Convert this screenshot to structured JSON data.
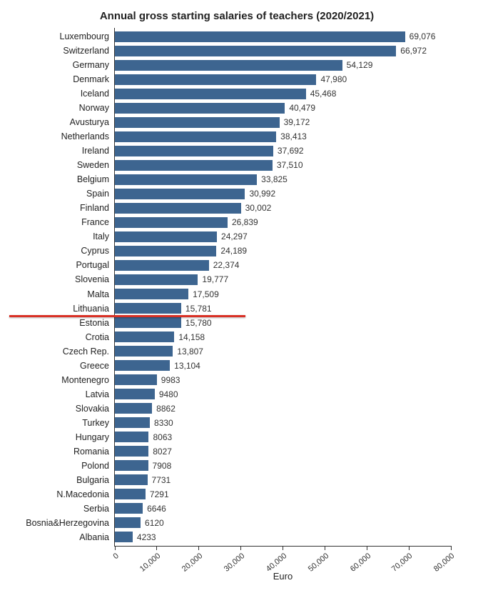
{
  "chart": {
    "type": "bar-horizontal",
    "title": "Annual gross starting salaries of teachers (2020/2021)",
    "x_axis_title": "Euro",
    "x_min": 0,
    "x_max": 80000,
    "x_tick_step": 10000,
    "x_ticks": [
      0,
      10000,
      20000,
      30000,
      40000,
      50000,
      60000,
      70000,
      80000
    ],
    "x_tick_labels": [
      "0",
      "10,000",
      "20,000",
      "30,000",
      "40,000",
      "50,000",
      "60,000",
      "70,000",
      "80,000"
    ],
    "bar_color": "#3d6590",
    "background_color": "#ffffff",
    "title_fontsize": 15,
    "tick_fontsize": 11,
    "ylabel_fontsize": 12.5,
    "value_fontsize": 12,
    "highlight_after_index": 19,
    "highlight_color": "#d93025",
    "rows": [
      {
        "label": "Luxembourg",
        "value": 69076,
        "display": "69,076"
      },
      {
        "label": "Switzerland",
        "value": 66972,
        "display": "66,972"
      },
      {
        "label": "Germany",
        "value": 54129,
        "display": "54,129"
      },
      {
        "label": "Denmark",
        "value": 47980,
        "display": "47,980"
      },
      {
        "label": "Iceland",
        "value": 45468,
        "display": "45,468"
      },
      {
        "label": "Norway",
        "value": 40479,
        "display": "40,479"
      },
      {
        "label": "Avusturya",
        "value": 39172,
        "display": "39,172"
      },
      {
        "label": "Netherlands",
        "value": 38413,
        "display": "38,413"
      },
      {
        "label": "Ireland",
        "value": 37692,
        "display": "37,692"
      },
      {
        "label": "Sweden",
        "value": 37510,
        "display": "37,510"
      },
      {
        "label": "Belgium",
        "value": 33825,
        "display": "33,825"
      },
      {
        "label": "Spain",
        "value": 30992,
        "display": "30,992"
      },
      {
        "label": "Finland",
        "value": 30002,
        "display": "30,002"
      },
      {
        "label": "France",
        "value": 26839,
        "display": "26,839"
      },
      {
        "label": "Italy",
        "value": 24297,
        "display": "24,297"
      },
      {
        "label": "Cyprus",
        "value": 24189,
        "display": "24,189"
      },
      {
        "label": "Portugal",
        "value": 22374,
        "display": "22,374"
      },
      {
        "label": "Slovenia",
        "value": 19777,
        "display": "19,777"
      },
      {
        "label": "Malta",
        "value": 17509,
        "display": "17,509"
      },
      {
        "label": "Lithuania",
        "value": 15781,
        "display": "15,781"
      },
      {
        "label": "Estonia",
        "value": 15780,
        "display": "15,780"
      },
      {
        "label": "Crotia",
        "value": 14158,
        "display": "14,158"
      },
      {
        "label": "Czech Rep.",
        "value": 13807,
        "display": "13,807"
      },
      {
        "label": "Greece",
        "value": 13104,
        "display": "13,104"
      },
      {
        "label": "Montenegro",
        "value": 9983,
        "display": "9983"
      },
      {
        "label": "Latvia",
        "value": 9480,
        "display": "9480"
      },
      {
        "label": "Slovakia",
        "value": 8862,
        "display": "8862"
      },
      {
        "label": "Turkey",
        "value": 8330,
        "display": "8330"
      },
      {
        "label": "Hungary",
        "value": 8063,
        "display": "8063"
      },
      {
        "label": "Romania",
        "value": 8027,
        "display": "8027"
      },
      {
        "label": "Polond",
        "value": 7908,
        "display": "7908"
      },
      {
        "label": "Bulgaria",
        "value": 7731,
        "display": "7731"
      },
      {
        "label": "N.Macedonia",
        "value": 7291,
        "display": "7291"
      },
      {
        "label": "Serbia",
        "value": 6646,
        "display": "6646"
      },
      {
        "label": "Bosnia&Herzegovina",
        "value": 6120,
        "display": "6120"
      },
      {
        "label": "Albania",
        "value": 4233,
        "display": "4233"
      }
    ]
  }
}
